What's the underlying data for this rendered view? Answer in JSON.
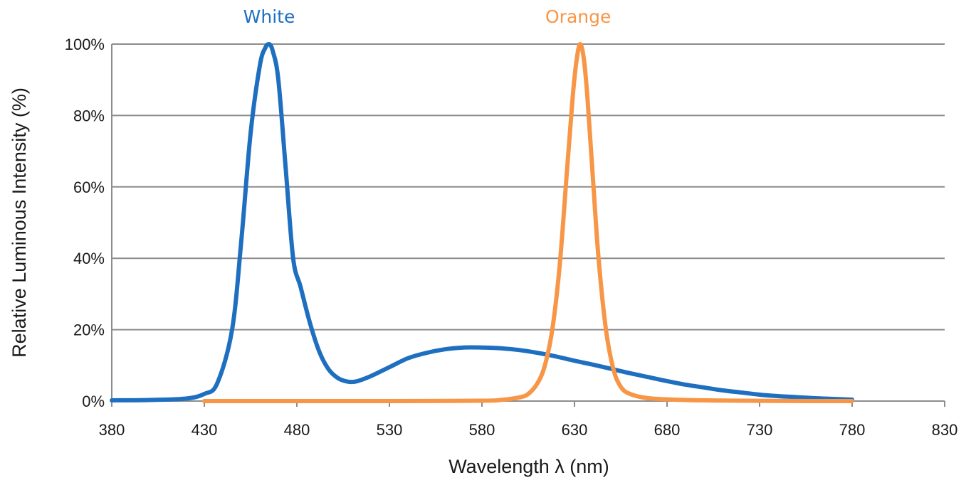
{
  "chart_data": {
    "type": "line",
    "xlabel": "Wavelength λ (nm)",
    "ylabel": "Relative Luminous Intensity (%)",
    "xlim": [
      380,
      830
    ],
    "ylim": [
      0,
      100
    ],
    "x_ticks": [
      380,
      430,
      480,
      530,
      580,
      630,
      680,
      730,
      780,
      830
    ],
    "y_ticks": [
      0,
      20,
      40,
      60,
      80,
      100
    ],
    "y_tick_labels": [
      "0%",
      "20%",
      "40%",
      "60%",
      "80%",
      "100%"
    ],
    "grid": "horizontal",
    "legend": "inline labels at top",
    "series": [
      {
        "name": "White",
        "color": "#1f6fc0",
        "label_x": 465,
        "x": [
          380,
          400,
          420,
          430,
          437,
          445,
          450,
          455,
          460,
          463,
          465,
          467,
          470,
          474,
          478,
          482,
          487,
          492,
          497,
          502,
          507,
          512,
          520,
          530,
          540,
          550,
          560,
          570,
          580,
          590,
          600,
          610,
          620,
          630,
          640,
          650,
          660,
          670,
          680,
          690,
          700,
          710,
          720,
          730,
          740,
          750,
          760,
          770,
          780
        ],
        "y": [
          0.2,
          0.3,
          0.7,
          2,
          5,
          20,
          45,
          75,
          94,
          99,
          100,
          98,
          90,
          65,
          40,
          32,
          22,
          14,
          9,
          6.5,
          5.5,
          5.5,
          7,
          9.5,
          12,
          13.5,
          14.5,
          15,
          15,
          14.8,
          14.3,
          13.5,
          12.5,
          11.3,
          10.2,
          9,
          7.8,
          6.7,
          5.6,
          4.6,
          3.8,
          3,
          2.4,
          1.8,
          1.4,
          1.1,
          0.8,
          0.6,
          0.4
        ]
      },
      {
        "name": "Orange",
        "color": "#f79646",
        "label_x": 632,
        "x": [
          430,
          480,
          530,
          580,
          590,
          600,
          605,
          610,
          614,
          618,
          622,
          626,
          629,
          631,
          633,
          635,
          637,
          640,
          643,
          647,
          651,
          655,
          660,
          670,
          690,
          720,
          760,
          780
        ],
        "y": [
          0,
          0,
          0,
          0.1,
          0.3,
          1,
          2,
          5,
          10,
          20,
          38,
          65,
          85,
          95,
          100,
          96,
          85,
          62,
          40,
          20,
          9,
          4,
          2,
          0.8,
          0.3,
          0.1,
          0,
          0
        ]
      }
    ]
  }
}
